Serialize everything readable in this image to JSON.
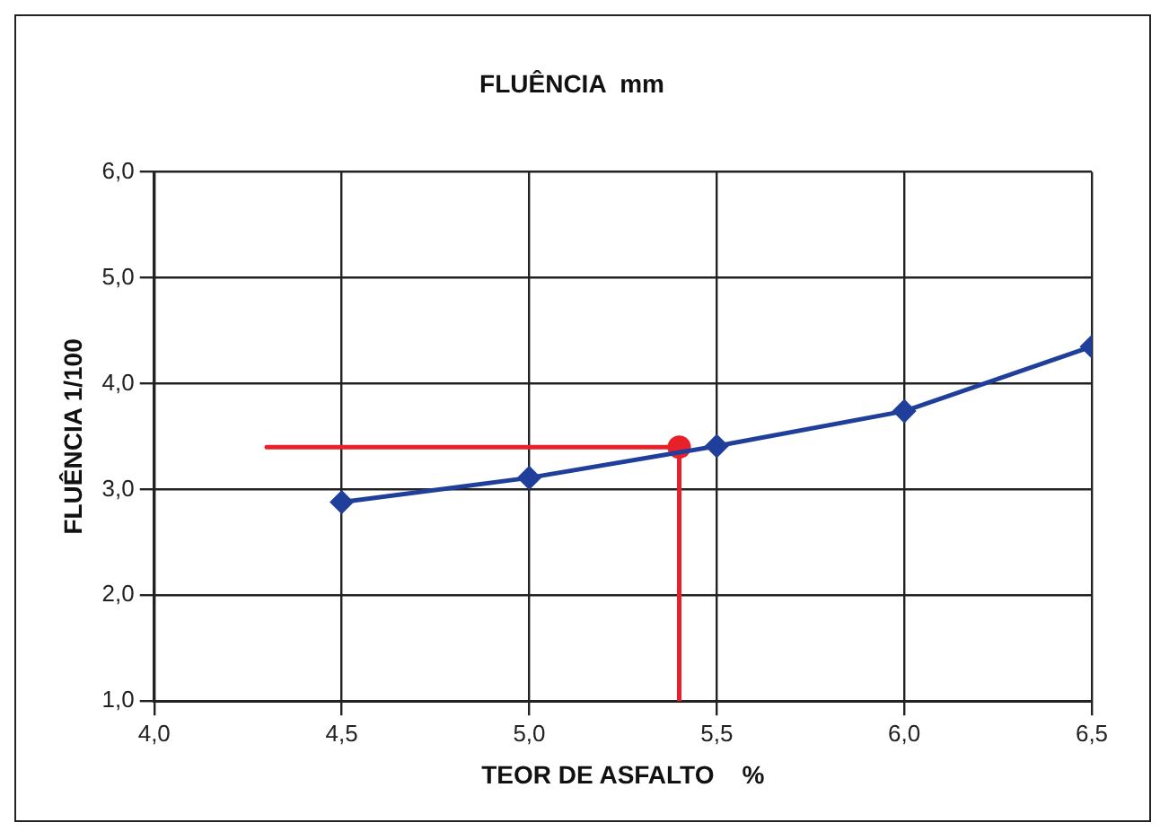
{
  "chart_data": {
    "type": "line",
    "title": "FLUÊNCIA  mm",
    "xlabel": "TEOR DE ASFALTO    %",
    "ylabel": "FLUÊNCIA 1/100",
    "series": [
      {
        "color": "#1f3f9a",
        "x": [
          4.5,
          5.0,
          5.5,
          6.0,
          6.5
        ],
        "values": [
          2.88,
          3.11,
          3.41,
          3.74,
          4.35
        ],
        "marker": "diamond"
      },
      {
        "color": "#e8202a",
        "x": [
          5.4,
          4.3
        ],
        "values": [
          3.4,
          3.4
        ],
        "marker": "none"
      },
      {
        "color": "#e8202a",
        "x": [
          5.4,
          5.4
        ],
        "values": [
          3.4,
          1.0
        ],
        "marker": "none"
      },
      {
        "type": "scatter",
        "color": "#e8202a",
        "x": [
          5.4
        ],
        "values": [
          3.4
        ],
        "marker": "circle"
      }
    ],
    "xlim": [
      4.0,
      6.5
    ],
    "xticks": [
      {
        "value": 4.0,
        "label": "4,0"
      },
      {
        "value": 4.5,
        "label": "4,5"
      },
      {
        "value": 5.0,
        "label": "5,0"
      },
      {
        "value": 5.5,
        "label": "5,5"
      },
      {
        "value": 6.0,
        "label": "6,0"
      },
      {
        "value": 6.5,
        "label": "6,5"
      }
    ],
    "ylim": [
      1.0,
      6.0
    ],
    "yticks": [
      {
        "value": 1.0,
        "label": "1,0"
      },
      {
        "value": 2.0,
        "label": "2,0"
      },
      {
        "value": 3.0,
        "label": "3,0"
      },
      {
        "value": 4.0,
        "label": "4,0"
      },
      {
        "value": 5.0,
        "label": "5,0"
      },
      {
        "value": 6.0,
        "label": "6,0"
      }
    ],
    "grid": true,
    "legend": false,
    "line_style": "solid"
  }
}
